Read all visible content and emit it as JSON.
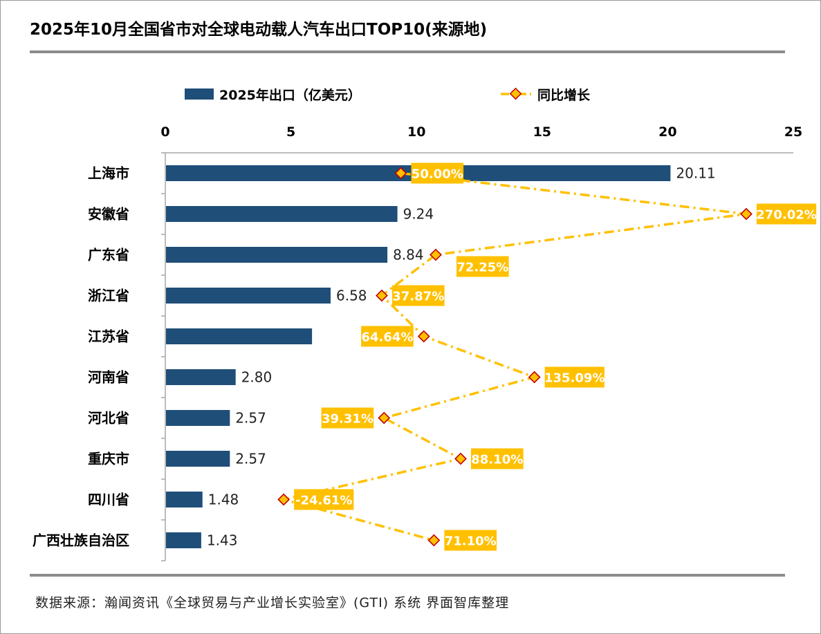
{
  "title": "2025年10月全国省市对全球电动载人汽车出口TOP10(来源地)",
  "footer": "数据来源：瀚闻资讯《全球贸易与产业增长实验室》(GTI) 系统    界面智库整理",
  "colors": {
    "bar": "#1F4E79",
    "line": "#FFC000",
    "marker_fill": "#FFC000",
    "marker_stroke": "#C00000",
    "label_bg": "#FFC000",
    "label_text": "#FFFFFF"
  },
  "chart_data": {
    "type": "bar",
    "orientation": "horizontal",
    "categories": [
      "上海市",
      "安徽省",
      "广东省",
      "浙江省",
      "江苏省",
      "河南省",
      "河北省",
      "重庆市",
      "四川省",
      "广西壮族自治区"
    ],
    "series": [
      {
        "name": "2025年出口（亿美元）",
        "type": "bar",
        "values": [
          20.11,
          9.24,
          8.84,
          6.58,
          5.84,
          2.8,
          2.57,
          2.57,
          1.48,
          1.43
        ],
        "labels": [
          "20.11",
          "9.24",
          "8.84",
          "6.58",
          "",
          "2.80",
          "2.57",
          "2.57",
          "1.48",
          "1.43"
        ]
      },
      {
        "name": "同比增长",
        "type": "line",
        "values": [
          50.0,
          270.02,
          72.25,
          37.87,
          64.64,
          135.09,
          39.31,
          88.1,
          -24.61,
          71.1
        ],
        "labels": [
          "50.00%",
          "270.02%",
          "72.25%",
          "37.87%",
          "64.64%",
          "135.09%",
          "39.31%",
          "88.10%",
          "-24.61%",
          "71.10%"
        ]
      }
    ],
    "x_axis": {
      "ticks": [
        "0",
        "5",
        "10",
        "15",
        "20",
        "25"
      ],
      "range": [
        0,
        25
      ],
      "position": "top"
    },
    "legend_placement": "top",
    "grid": false
  }
}
